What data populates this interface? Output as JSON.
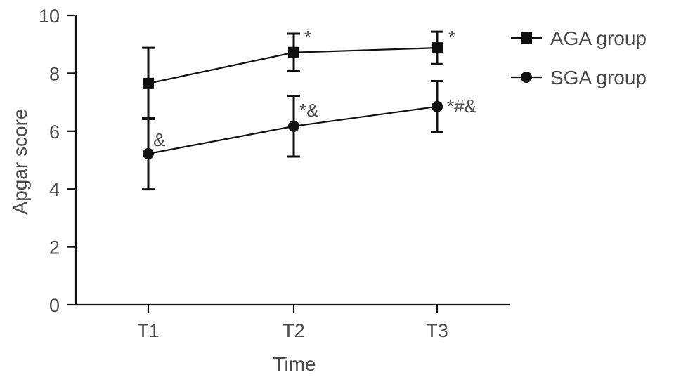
{
  "chart_data": {
    "type": "line",
    "title": "",
    "xlabel": "Time",
    "ylabel": "Apgar score",
    "categories": [
      "T1",
      "T2",
      "T3"
    ],
    "ylim": [
      0,
      10
    ],
    "yticks": [
      0,
      2,
      4,
      6,
      8,
      10
    ],
    "grid": false,
    "legend": "right",
    "series": [
      {
        "name": "AGA group",
        "marker": "square",
        "values": [
          7.65,
          8.72,
          8.88
        ],
        "errors": [
          1.23,
          0.65,
          0.56
        ],
        "annotations": [
          "",
          "*",
          "*"
        ]
      },
      {
        "name": "SGA group",
        "marker": "circle",
        "values": [
          5.22,
          6.17,
          6.85
        ],
        "errors": [
          1.23,
          1.05,
          0.88
        ],
        "annotations": [
          "&",
          "*&",
          "*#&"
        ]
      }
    ],
    "line_color": "#111111"
  }
}
